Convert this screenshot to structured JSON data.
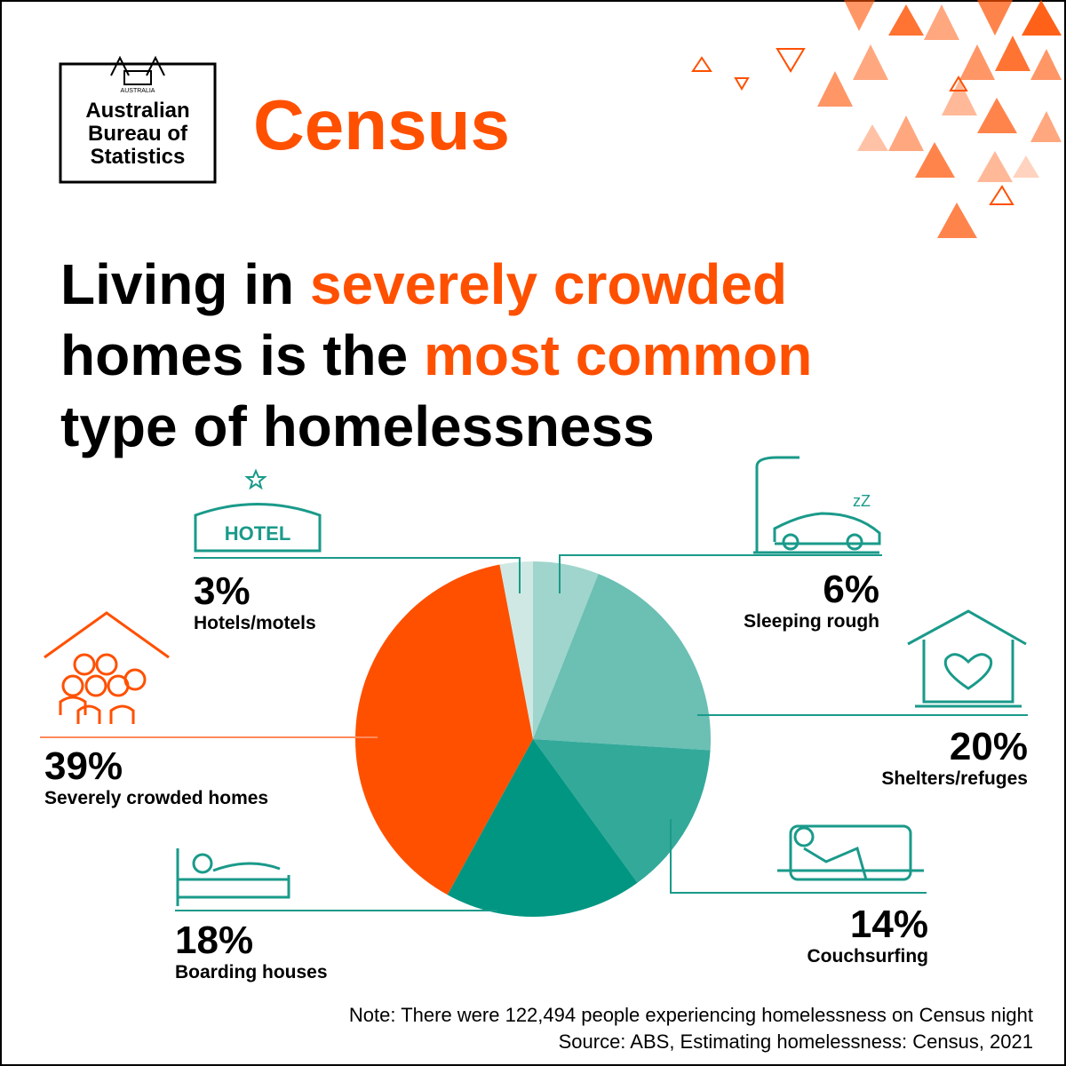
{
  "header": {
    "logo_lines": [
      "Australian",
      "Bureau of",
      "Statistics"
    ],
    "crest_text": "AUSTRALIA",
    "brand": "Census"
  },
  "chart_data": {
    "type": "pie",
    "title_lines": [
      [
        {
          "text": "Living in ",
          "color": "#000000"
        },
        {
          "text": "severely crowded",
          "color": "#ff5000"
        }
      ],
      [
        {
          "text": "homes is the ",
          "color": "#000000"
        },
        {
          "text": "most common",
          "color": "#ff5000"
        }
      ],
      [
        {
          "text": "type of homelessness",
          "color": "#000000"
        }
      ]
    ],
    "categories": [
      "Sleeping rough",
      "Shelters/refuges",
      "Couchsurfing",
      "Boarding houses",
      "Severely crowded homes",
      "Hotels/motels"
    ],
    "values": [
      6,
      20,
      14,
      18,
      39,
      3
    ],
    "value_labels": [
      "6%",
      "20%",
      "14%",
      "18%",
      "39%",
      "3%"
    ],
    "colors": [
      "#9fd5cc",
      "#6bbfb3",
      "#33a99a",
      "#009682",
      "#ff5000",
      "#cfe8e4"
    ],
    "start_angle": 0,
    "direction": "clockwise",
    "note": "Note: There were 122,494 people experiencing homelessness on Census night",
    "source": "Source: ABS, Estimating homelessness: Census, 2021"
  }
}
